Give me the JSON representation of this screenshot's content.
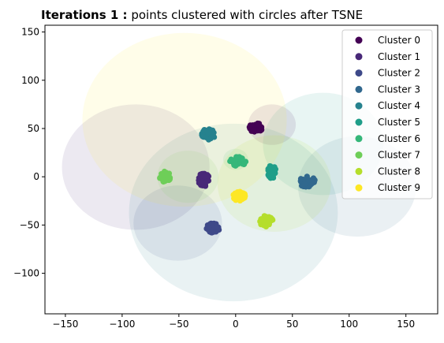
{
  "chart_data": {
    "type": "scatter",
    "title_bold": "Iterations 1 :",
    "title_rest": " points clustered with circles after TSNE",
    "xlabel": "",
    "ylabel": "",
    "xlim": [
      -168,
      178
    ],
    "ylim": [
      -142,
      157
    ],
    "xticks": [
      -150,
      -100,
      -50,
      0,
      50,
      100,
      150
    ],
    "yticks": [
      -100,
      -50,
      0,
      50,
      100,
      150
    ],
    "grid": false,
    "legend_position": "top-right",
    "series": [
      {
        "name": "Cluster 0",
        "color": "#440154",
        "center": [
          18,
          51
        ],
        "spread": [
          6,
          5
        ],
        "circle": {
          "cx": 32,
          "cy": 54,
          "r": 21
        }
      },
      {
        "name": "Cluster 1",
        "color": "#482878",
        "center": [
          -28,
          -3
        ],
        "spread": [
          5,
          7
        ],
        "circle": {
          "cx": -88,
          "cy": 10,
          "r": 65
        }
      },
      {
        "name": "Cluster 2",
        "color": "#3e4989",
        "center": [
          -20,
          -53
        ],
        "spread": [
          6,
          5
        ],
        "circle": {
          "cx": -51,
          "cy": -48,
          "r": 39
        }
      },
      {
        "name": "Cluster 3",
        "color": "#31688e",
        "center": [
          63,
          -5
        ],
        "spread": [
          7,
          6
        ],
        "circle": {
          "cx": 107,
          "cy": -10,
          "r": 52
        }
      },
      {
        "name": "Cluster 4",
        "color": "#26828e",
        "center": [
          -24,
          44
        ],
        "spread": [
          6,
          6
        ],
        "circle": {
          "cx": -2,
          "cy": -37,
          "r": 92
        }
      },
      {
        "name": "Cluster 5",
        "color": "#1f9e89",
        "center": [
          32,
          5
        ],
        "spread": [
          4,
          7
        ],
        "circle": {
          "cx": 77,
          "cy": 34,
          "r": 53
        }
      },
      {
        "name": "Cluster 6",
        "color": "#35b779",
        "center": [
          2,
          16
        ],
        "spread": [
          7,
          5
        ],
        "circle": {
          "cx": 0,
          "cy": 18,
          "r": 11
        }
      },
      {
        "name": "Cluster 7",
        "color": "#6ece58",
        "center": [
          -62,
          0
        ],
        "spread": [
          5,
          6
        ],
        "circle": {
          "cx": -42,
          "cy": 0,
          "r": 27
        }
      },
      {
        "name": "Cluster 8",
        "color": "#b5de2b",
        "center": [
          27,
          -46
        ],
        "spread": [
          6,
          6
        ],
        "circle": {
          "cx": 34,
          "cy": -7,
          "r": 50
        }
      },
      {
        "name": "Cluster 9",
        "color": "#fde725",
        "center": [
          3,
          -20
        ],
        "spread": [
          6,
          5
        ],
        "circle": {
          "cx": -45,
          "cy": 59,
          "r": 90
        }
      }
    ]
  }
}
